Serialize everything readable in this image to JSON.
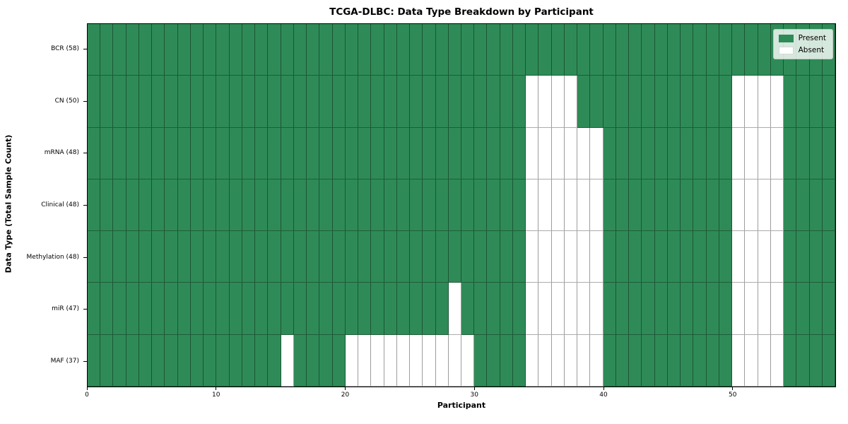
{
  "title": "TCGA-DLBC: Data Type Breakdown by Participant",
  "chart_data": {
    "type": "heatmap",
    "title": "TCGA-DLBC: Data Type Breakdown by Participant",
    "xlabel": "Participant",
    "ylabel": "Data Type (Total Sample Count)",
    "n_participants": 58,
    "x_range": [
      0,
      58
    ],
    "x_ticks": [
      0,
      10,
      20,
      30,
      40,
      50
    ],
    "grid": true,
    "legend_position": "upper right",
    "rows": [
      {
        "name": "BCR",
        "label": "BCR (58)",
        "total_samples": 58,
        "absent_participants": []
      },
      {
        "name": "CN",
        "label": "CN (50)",
        "total_samples": 50,
        "absent_participants": [
          34,
          35,
          36,
          37,
          50,
          51,
          52,
          53
        ]
      },
      {
        "name": "mRNA",
        "label": "mRNA (48)",
        "total_samples": 48,
        "absent_participants": [
          34,
          35,
          36,
          37,
          38,
          39,
          50,
          51,
          52,
          53
        ]
      },
      {
        "name": "Clinical",
        "label": "Clinical (48)",
        "total_samples": 48,
        "absent_participants": [
          34,
          35,
          36,
          37,
          38,
          39,
          50,
          51,
          52,
          53
        ]
      },
      {
        "name": "Methylation",
        "label": "Methylation (48)",
        "total_samples": 48,
        "absent_participants": [
          34,
          35,
          36,
          37,
          38,
          39,
          50,
          51,
          52,
          53
        ]
      },
      {
        "name": "miR",
        "label": "miR (47)",
        "total_samples": 47,
        "absent_participants": [
          28,
          34,
          35,
          36,
          37,
          38,
          39,
          50,
          51,
          52,
          53
        ]
      },
      {
        "name": "MAF",
        "label": "MAF (37)",
        "total_samples": 37,
        "absent_participants": [
          15,
          20,
          21,
          22,
          23,
          24,
          25,
          26,
          27,
          28,
          29,
          34,
          35,
          36,
          37,
          38,
          39,
          50,
          51,
          52,
          53
        ]
      }
    ],
    "legend": [
      {
        "label": "Present",
        "color": "#2e8b57"
      },
      {
        "label": "Absent",
        "color": "#ffffff"
      }
    ],
    "colors": {
      "present": "#2e8b57",
      "absent": "#ffffff",
      "border": "#000000"
    }
  }
}
